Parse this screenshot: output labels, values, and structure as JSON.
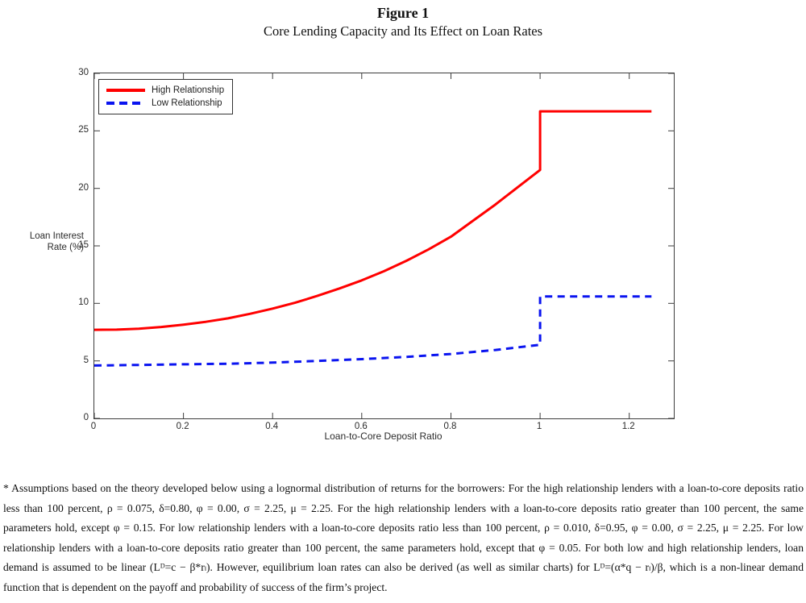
{
  "page": {
    "title": "Figure 1",
    "subtitle": "Core Lending Capacity and Its Effect on Loan Rates",
    "footnote": "* Assumptions based on the theory developed below using a lognormal distribution of returns for the borrowers: For the high relationship lenders with a loan-to-core deposits ratio less than 100 percent, ρ = 0.075, δ=0.80, φ = 0.00, σ = 2.25, μ = 2.25. For the high relationship lenders with a loan-to-core deposits ratio greater than 100 percent, the same parameters hold, except φ = 0.15. For low relationship lenders with a loan-to-core deposits ratio less than 100 percent, ρ = 0.010, δ=0.95, φ = 0.00, σ = 2.25, μ = 2.25. For low relationship lenders with a loan-to-core deposits ratio greater than 100 percent, the same parameters hold, except that φ = 0.05. For both low and high relationship lenders, loan demand is assumed to be linear (Lᴰ=c − β*rₗ). However, equilibrium loan rates can also be derived (as well as similar charts) for Lᴰ=(α*q − rₗ)/β, which is a non-linear demand function that is dependent on the payoff and probability of success of the firm’s project."
  },
  "chart_data": {
    "type": "line",
    "title": "Core Lending Capacity and Its Effect on Loan Rates",
    "xlabel": "Loan-to-Core Deposit Ratio",
    "ylabel": "Loan Interest Rate (%)",
    "ylabel_line1": "Loan Interest",
    "ylabel_line2": "Rate (%)",
    "xlim": [
      0,
      1.3
    ],
    "ylim": [
      0,
      30
    ],
    "grid": false,
    "x_ticks": {
      "values": [
        0,
        0.2,
        0.4,
        0.6,
        0.8,
        1,
        1.2
      ],
      "labels": [
        "0",
        "0.2",
        "0.4",
        "0.6",
        "0.8",
        "1",
        "1.2"
      ]
    },
    "y_ticks": {
      "values": [
        0,
        5,
        10,
        15,
        20,
        25,
        30
      ],
      "labels": [
        "0",
        "5",
        "10",
        "15",
        "20",
        "25",
        "30"
      ]
    },
    "axis_color": "#3c3c3c",
    "legend": {
      "position": "top-left",
      "entries": [
        {
          "label": "High Relationship",
          "color": "#FF0000",
          "style": "solid"
        },
        {
          "label": "Low Relationship",
          "color": "#0A14F0",
          "style": "dashed"
        }
      ]
    },
    "series": [
      {
        "name": "High Relationship",
        "color": "#FF0000",
        "style": "solid",
        "width": 3,
        "points": [
          [
            0,
            7.7
          ],
          [
            0.05,
            7.72
          ],
          [
            0.1,
            7.8
          ],
          [
            0.15,
            7.95
          ],
          [
            0.2,
            8.15
          ],
          [
            0.25,
            8.4
          ],
          [
            0.3,
            8.7
          ],
          [
            0.35,
            9.1
          ],
          [
            0.4,
            9.55
          ],
          [
            0.45,
            10.05
          ],
          [
            0.5,
            10.65
          ],
          [
            0.55,
            11.3
          ],
          [
            0.6,
            12.0
          ],
          [
            0.65,
            12.8
          ],
          [
            0.7,
            13.7
          ],
          [
            0.75,
            14.7
          ],
          [
            0.8,
            15.8
          ],
          [
            0.85,
            17.2
          ],
          [
            0.9,
            18.6
          ],
          [
            0.95,
            20.1
          ],
          [
            1.0,
            21.6
          ],
          [
            1.0,
            26.7
          ],
          [
            1.25,
            26.7
          ]
        ]
      },
      {
        "name": "Low Relationship",
        "color": "#0A14F0",
        "style": "dashed",
        "width": 3,
        "points": [
          [
            0,
            4.6
          ],
          [
            0.1,
            4.65
          ],
          [
            0.2,
            4.7
          ],
          [
            0.3,
            4.75
          ],
          [
            0.4,
            4.85
          ],
          [
            0.5,
            5.0
          ],
          [
            0.6,
            5.15
          ],
          [
            0.7,
            5.35
          ],
          [
            0.8,
            5.6
          ],
          [
            0.9,
            5.95
          ],
          [
            1.0,
            6.4
          ],
          [
            1.0,
            10.6
          ],
          [
            1.25,
            10.6
          ]
        ]
      }
    ]
  }
}
